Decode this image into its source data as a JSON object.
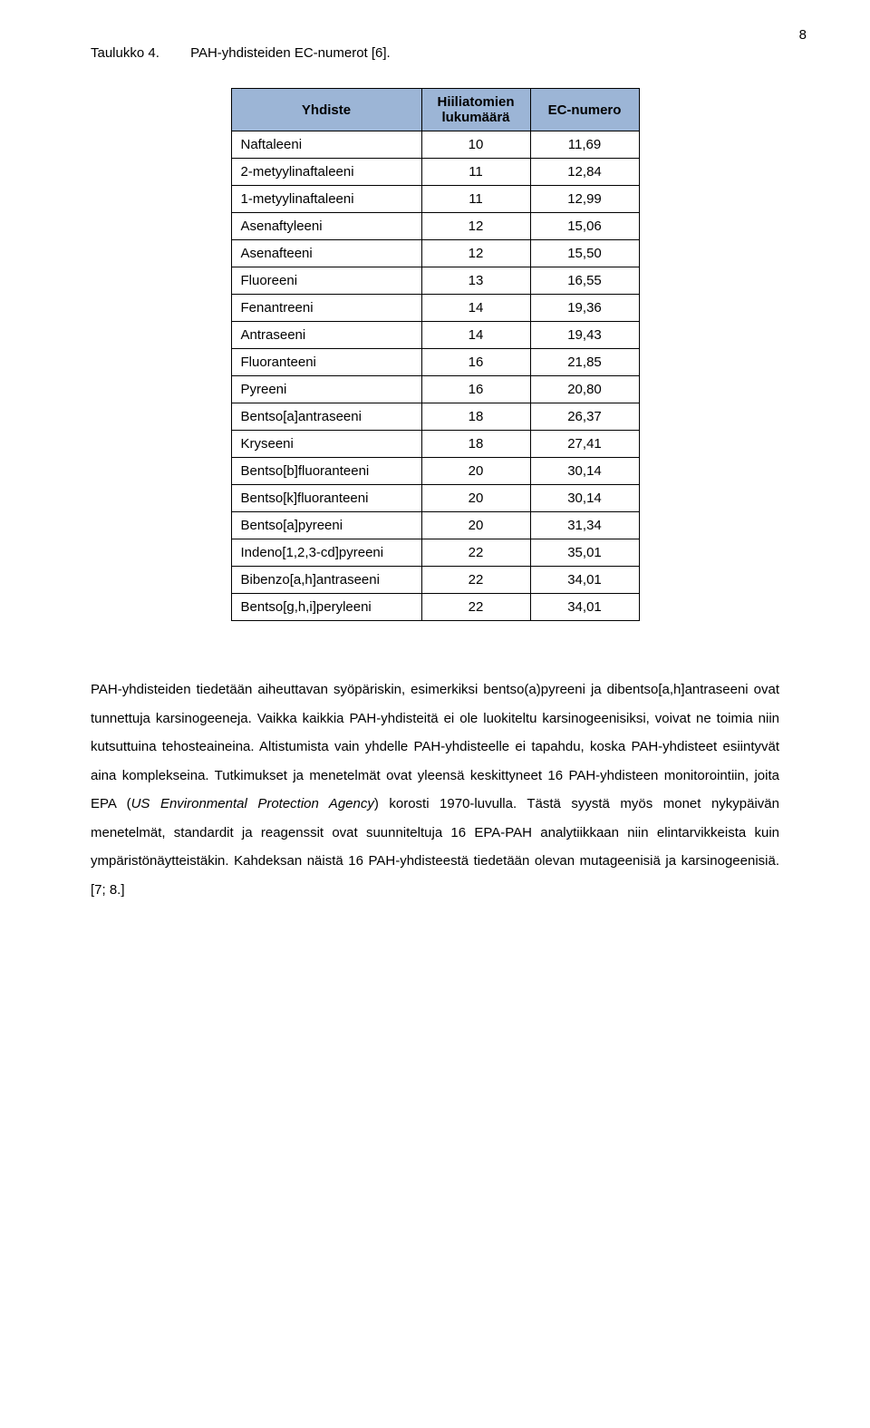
{
  "page_number": "8",
  "caption": {
    "label": "Taulukko 4.",
    "text": "PAH-yhdisteiden EC-numerot [6]."
  },
  "table": {
    "header_bg": "#9cb5d6",
    "headers": [
      "Yhdiste",
      "Hiiliatomien lukumäärä",
      "EC-numero"
    ],
    "col_widths": [
      "210px",
      "120px",
      "120px"
    ],
    "rows": [
      [
        "Naftaleeni",
        "10",
        "11,69"
      ],
      [
        "2-metyylinaftaleeni",
        "11",
        "12,84"
      ],
      [
        "1-metyylinaftaleeni",
        "11",
        "12,99"
      ],
      [
        "Asenaftyleeni",
        "12",
        "15,06"
      ],
      [
        "Asenafteeni",
        "12",
        "15,50"
      ],
      [
        "Fluoreeni",
        "13",
        "16,55"
      ],
      [
        "Fenantreeni",
        "14",
        "19,36"
      ],
      [
        "Antraseeni",
        "14",
        "19,43"
      ],
      [
        "Fluoranteeni",
        "16",
        "21,85"
      ],
      [
        "Pyreeni",
        "16",
        "20,80"
      ],
      [
        "Bentso[a]antraseeni",
        "18",
        "26,37"
      ],
      [
        "Kryseeni",
        "18",
        "27,41"
      ],
      [
        "Bentso[b]fluoranteeni",
        "20",
        "30,14"
      ],
      [
        "Bentso[k]fluoranteeni",
        "20",
        "30,14"
      ],
      [
        "Bentso[a]pyreeni",
        "20",
        "31,34"
      ],
      [
        "Indeno[1,2,3-cd]pyreeni",
        "22",
        "35,01"
      ],
      [
        "Bibenzo[a,h]antraseeni",
        "22",
        "34,01"
      ],
      [
        "Bentso[g,h,i]peryleeni",
        "22",
        "34,01"
      ]
    ]
  },
  "paragraph": {
    "seg1": "PAH-yhdisteiden tiedetään aiheuttavan syöpäriskin, esimerkiksi bentso(a)pyreeni ja dibentso[a,h]antraseeni ovat tunnettuja karsinogeeneja. Vaikka kaikkia PAH-yhdisteitä ei ole luokiteltu karsinogeenisiksi, voivat ne toimia niin kutsuttuina tehosteaineina. Altistumista vain yhdelle PAH-yhdisteelle ei tapahdu, koska PAH-yhdisteet esiintyvät aina komplekseina. Tutkimukset ja menetelmät ovat yleensä keskittyneet 16 PAH-yhdisteen monitorointiin, joita EPA (",
    "seg2_italic": "US Environmental Protection Agency",
    "seg3": ") korosti 1970-luvulla. Tästä syystä myös monet nykypäivän menetelmät, standardit ja reagenssit ovat suunniteltuja 16 EPA-PAH analytiikkaan niin elintarvikkeista kuin ympäristönäytteistäkin. Kahdeksan näistä 16 PAH-yhdisteestä tiedetään olevan mutageenisiä ja karsinogeenisiä.   [7; 8.]"
  }
}
